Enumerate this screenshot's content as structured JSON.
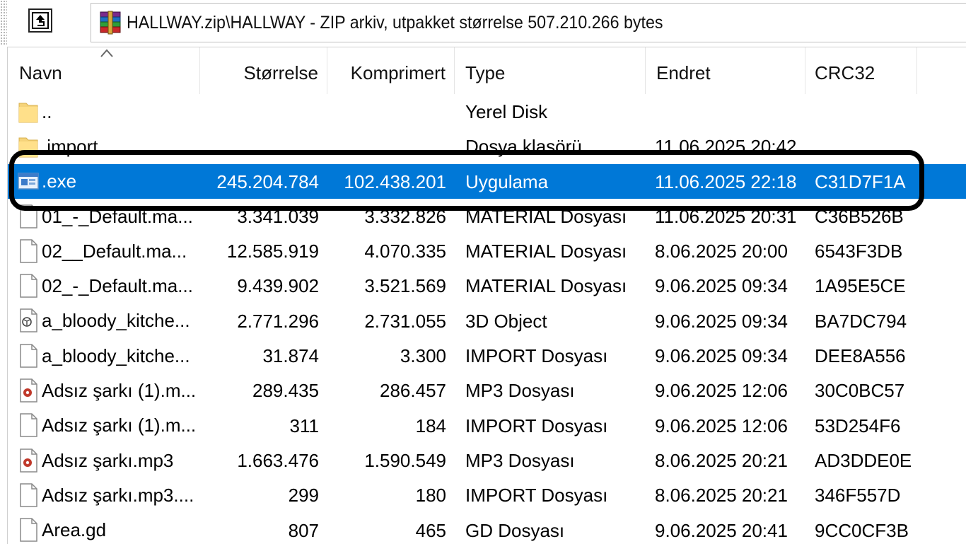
{
  "path_bar": {
    "up_icon": "up-folder-icon",
    "archive_icon": "winrar-archive-icon",
    "path_text": "HALLWAY.zip\\HALLWAY - ZIP arkiv, utpakket størrelse 507.210.266 bytes"
  },
  "columns": {
    "name": "Navn",
    "size": "Størrelse",
    "compressed": "Komprimert",
    "type": "Type",
    "modified": "Endret",
    "crc": "CRC32"
  },
  "files": [
    {
      "icon": "folder-icon",
      "name": "..",
      "size": "",
      "compressed": "",
      "type": "Yerel Disk",
      "modified": "",
      "crc": ""
    },
    {
      "icon": "folder-icon",
      "name": ".import",
      "size": "",
      "compressed": "",
      "type": "Dosya klasörü",
      "modified": "11.06.2025 20:42",
      "crc": ""
    },
    {
      "icon": "exe-icon",
      "name": ".exe",
      "size": "245.204.784",
      "compressed": "102.438.201",
      "type": "Uygulama",
      "modified": "11.06.2025 22:18",
      "crc": "C31D7F1A",
      "selected": true
    },
    {
      "icon": "file-icon",
      "name": "01_-_Default.ma...",
      "size": "3.341.039",
      "compressed": "3.332.826",
      "type": "MATERIAL Dosyası",
      "modified": "11.06.2025 20:31",
      "crc": "C36B526B"
    },
    {
      "icon": "file-icon",
      "name": "02__Default.ma...",
      "size": "12.585.919",
      "compressed": "4.070.335",
      "type": "MATERIAL Dosyası",
      "modified": "8.06.2025 20:00",
      "crc": "6543F3DB"
    },
    {
      "icon": "file-icon",
      "name": "02_-_Default.ma...",
      "size": "9.439.902",
      "compressed": "3.521.569",
      "type": "MATERIAL Dosyası",
      "modified": "9.06.2025 09:34",
      "crc": "1A95E5CE"
    },
    {
      "icon": "3d-object-icon",
      "name": "a_bloody_kitche...",
      "size": "2.771.296",
      "compressed": "2.731.055",
      "type": "3D Object",
      "modified": "9.06.2025 09:34",
      "crc": "BA7DC794"
    },
    {
      "icon": "file-icon",
      "name": "a_bloody_kitche...",
      "size": "31.874",
      "compressed": "3.300",
      "type": "IMPORT Dosyası",
      "modified": "9.06.2025 09:34",
      "crc": "DEE8A556"
    },
    {
      "icon": "audio-file-icon",
      "name": "Adsız şarkı (1).m...",
      "size": "289.435",
      "compressed": "286.457",
      "type": "MP3 Dosyası",
      "modified": "9.06.2025 12:06",
      "crc": "30C0BC57"
    },
    {
      "icon": "file-icon",
      "name": "Adsız şarkı (1).m...",
      "size": "311",
      "compressed": "184",
      "type": "IMPORT Dosyası",
      "modified": "9.06.2025 12:06",
      "crc": "53D254F6"
    },
    {
      "icon": "audio-file-icon",
      "name": "Adsız şarkı.mp3",
      "size": "1.663.476",
      "compressed": "1.590.549",
      "type": "MP3 Dosyası",
      "modified": "8.06.2025 20:21",
      "crc": "AD3DDE0E"
    },
    {
      "icon": "file-icon",
      "name": "Adsız şarkı.mp3....",
      "size": "299",
      "compressed": "180",
      "type": "IMPORT Dosyası",
      "modified": "8.06.2025 20:21",
      "crc": "346F557D"
    },
    {
      "icon": "file-icon",
      "name": "Area.gd",
      "size": "807",
      "compressed": "465",
      "type": "GD Dosyası",
      "modified": "9.06.2025 20:41",
      "crc": "9CC0CF3B"
    }
  ],
  "colors": {
    "selection": "#0078d7",
    "annotation_outline": "#000000"
  }
}
